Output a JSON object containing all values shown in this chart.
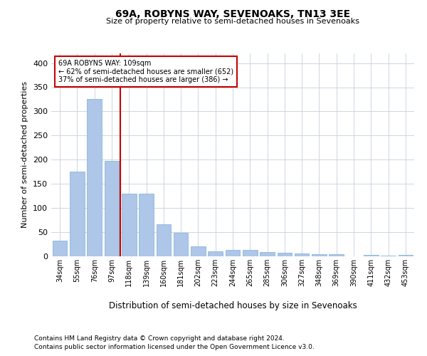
{
  "title": "69A, ROBYNS WAY, SEVENOAKS, TN13 3EE",
  "subtitle": "Size of property relative to semi-detached houses in Sevenoaks",
  "xlabel": "Distribution of semi-detached houses by size in Sevenoaks",
  "ylabel": "Number of semi-detached properties",
  "footnote1": "Contains HM Land Registry data © Crown copyright and database right 2024.",
  "footnote2": "Contains public sector information licensed under the Open Government Licence v3.0.",
  "categories": [
    "34sqm",
    "55sqm",
    "76sqm",
    "97sqm",
    "118sqm",
    "139sqm",
    "160sqm",
    "181sqm",
    "202sqm",
    "223sqm",
    "244sqm",
    "265sqm",
    "285sqm",
    "306sqm",
    "327sqm",
    "348sqm",
    "369sqm",
    "390sqm",
    "411sqm",
    "432sqm",
    "453sqm"
  ],
  "values": [
    32,
    176,
    325,
    198,
    130,
    130,
    67,
    48,
    20,
    11,
    14,
    14,
    9,
    7,
    6,
    4,
    4,
    0,
    3,
    1,
    3
  ],
  "bar_color": "#aec6e8",
  "bar_edge_color": "#7aafd4",
  "vline_x": 3.5,
  "vline_color": "#cc0000",
  "annotation_box_color": "#cc0000",
  "ann_line1": "69A ROBYNS WAY: 109sqm",
  "ann_line2": "← 62% of semi-detached houses are smaller (652)",
  "ann_line3": "37% of semi-detached houses are larger (386) →",
  "grid_color": "#c8d0dc",
  "background_color": "#ffffff",
  "ylim": [
    0,
    420
  ],
  "yticks": [
    0,
    50,
    100,
    150,
    200,
    250,
    300,
    350,
    400
  ]
}
